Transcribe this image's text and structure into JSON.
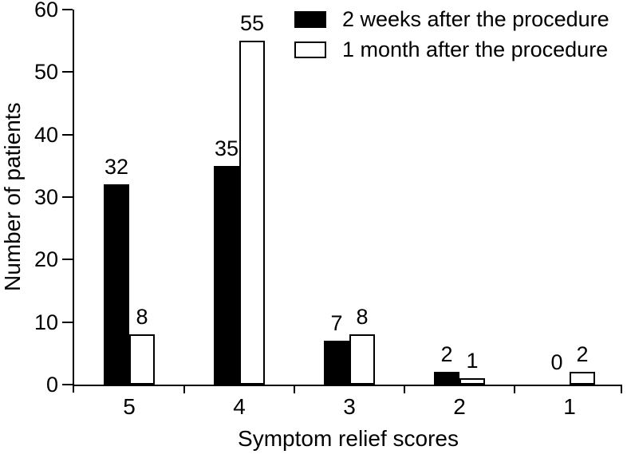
{
  "chart_data": {
    "type": "bar",
    "title": "",
    "xlabel": "Symptom relief scores",
    "ylabel": "Number of patients",
    "categories": [
      "5",
      "4",
      "3",
      "2",
      "1"
    ],
    "series": [
      {
        "name": "2 weeks after the procedure",
        "style": "filled",
        "color": "#000000",
        "values": [
          32,
          35,
          7,
          2,
          0
        ]
      },
      {
        "name": "1 month after the procedure",
        "style": "hollow",
        "color": "#ffffff",
        "values": [
          8,
          55,
          8,
          1,
          2
        ]
      }
    ],
    "bar_labels": [
      [
        "32",
        "35",
        "7",
        "2",
        "0"
      ],
      [
        "8",
        "55",
        "8",
        "1",
        "2"
      ]
    ],
    "ylim": [
      0,
      60
    ],
    "yticks": [
      "0",
      "10",
      "20",
      "30",
      "40",
      "50",
      "60"
    ],
    "grid": false,
    "legend_position": "top-right"
  },
  "colors": {
    "axis": "#000000",
    "text": "#000000",
    "background": "#ffffff",
    "bar_filled": "#000000",
    "bar_hollow_fill": "#ffffff",
    "bar_border": "#000000"
  }
}
